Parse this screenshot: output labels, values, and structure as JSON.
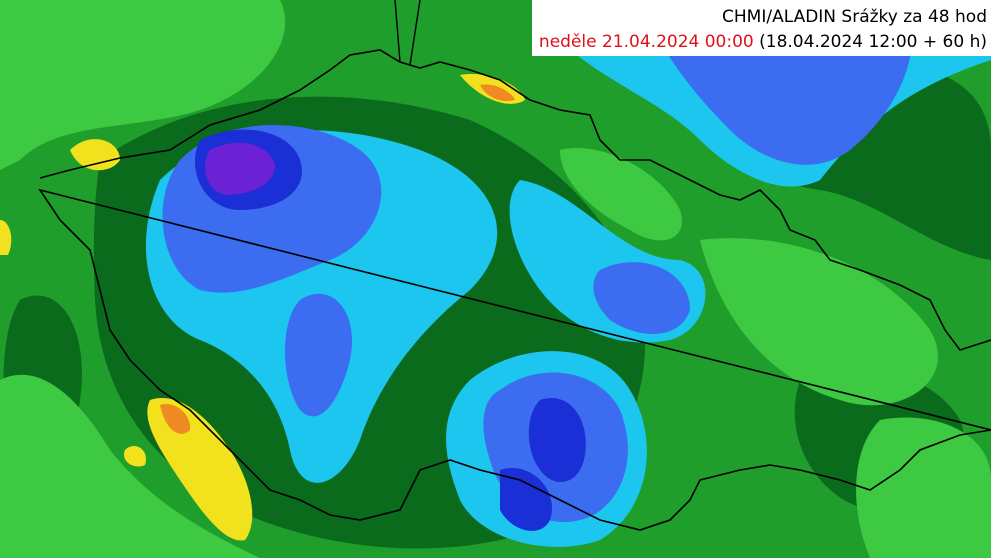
{
  "header": {
    "title": "CHMI/ALADIN Srážky za 48 hod",
    "valid_time": "neděle 21.04.2024 00:00",
    "run_info": "(18.04.2024 12:00 + 60 h)"
  }
}
